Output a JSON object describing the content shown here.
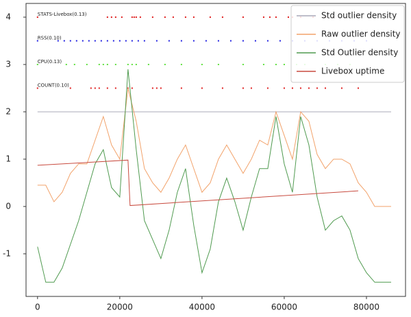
{
  "chart_data": {
    "type": "line",
    "xlim": [
      -2800,
      89500
    ],
    "ylim": [
      -1.9,
      4.29
    ],
    "xticks": [
      0,
      20000,
      40000,
      60000,
      80000
    ],
    "yticks": [
      -1,
      0,
      1,
      2,
      3,
      4
    ],
    "legend": "upper right",
    "series": [
      {
        "name": "Std outlier density",
        "color": "#a9a9b8",
        "x": [
          0,
          86000
        ],
        "values": [
          2,
          2
        ]
      },
      {
        "name": "Raw outlier density",
        "color": "#f2a26a",
        "x": [
          0,
          2000,
          4000,
          6000,
          8000,
          10000,
          12000,
          14000,
          16000,
          18000,
          20000,
          22000,
          24000,
          26000,
          28000,
          30000,
          32000,
          34000,
          36000,
          38000,
          40000,
          42000,
          44000,
          46000,
          48000,
          50000,
          52000,
          54000,
          56000,
          58000,
          60000,
          62000,
          64000,
          66000,
          68000,
          70000,
          72000,
          74000,
          76000,
          78000,
          80000,
          82000,
          84000,
          86000
        ],
        "values": [
          0.45,
          0.45,
          0.1,
          0.3,
          0.7,
          0.9,
          0.9,
          1.4,
          1.9,
          1.3,
          1.0,
          2.5,
          1.8,
          0.8,
          0.5,
          0.3,
          0.6,
          1.0,
          1.3,
          0.8,
          0.3,
          0.5,
          1.0,
          1.3,
          1.0,
          0.7,
          1.0,
          1.4,
          1.3,
          2.0,
          1.5,
          1.0,
          2.0,
          1.8,
          1.1,
          0.8,
          1.0,
          1.0,
          0.9,
          0.5,
          0.3,
          0.0,
          0.0,
          0.0
        ]
      },
      {
        "name": "Std Outlier density",
        "color": "#4f9a4f",
        "x": [
          0,
          2000,
          4000,
          6000,
          8000,
          10000,
          12000,
          14000,
          16000,
          18000,
          20000,
          22000,
          24000,
          26000,
          28000,
          30000,
          32000,
          34000,
          36000,
          38000,
          40000,
          42000,
          44000,
          46000,
          48000,
          50000,
          52000,
          54000,
          56000,
          58000,
          60000,
          62000,
          64000,
          66000,
          68000,
          70000,
          72000,
          74000,
          76000,
          78000,
          80000,
          82000,
          84000,
          86000
        ],
        "values": [
          -0.85,
          -1.6,
          -1.6,
          -1.3,
          -0.8,
          -0.3,
          0.3,
          0.9,
          1.2,
          0.4,
          0.2,
          2.9,
          1.2,
          -0.3,
          -0.7,
          -1.1,
          -0.5,
          0.3,
          0.8,
          -0.4,
          -1.4,
          -0.9,
          0.1,
          0.6,
          0.1,
          -0.5,
          0.2,
          0.8,
          0.8,
          1.9,
          0.9,
          0.3,
          1.9,
          1.3,
          0.2,
          -0.5,
          -0.3,
          -0.2,
          -0.5,
          -1.1,
          -1.4,
          -1.6,
          -1.6,
          -1.6
        ]
      },
      {
        "name": "Livebox uptime",
        "color": "#c84a3e",
        "x": [
          0,
          22000,
          22500,
          78000
        ],
        "values": [
          0.87,
          0.98,
          0.02,
          0.33
        ]
      }
    ],
    "event_rows": [
      {
        "label": "STATS-Livebox(0.13)",
        "y": 4,
        "color": "#e02020",
        "x": [
          0,
          17000,
          18000,
          19000,
          20500,
          23000,
          23500,
          24000,
          25000,
          28000,
          31000,
          33000,
          36000,
          38000,
          42000,
          45000,
          50000,
          55000,
          56500,
          58000,
          61000,
          62000,
          64000,
          67000,
          70000,
          72000
        ]
      },
      {
        "label": "RSS(0.10)",
        "y": 3.5,
        "color": "#2020e0",
        "x": [
          0,
          5000,
          6500,
          8000,
          9500,
          11000,
          12500,
          14000,
          15500,
          17000,
          18500,
          20000,
          21500,
          23000,
          24500,
          26000,
          29000,
          32000,
          35000,
          38000,
          41000,
          44000,
          47000,
          50000,
          53000,
          56000,
          59000,
          62000,
          65000,
          68000,
          71000,
          74000,
          77000,
          80000
        ]
      },
      {
        "label": "CPU(0.13)",
        "y": 3,
        "color": "#60e040",
        "x": [
          0,
          7000,
          9000,
          12000,
          15000,
          16000,
          17000,
          19000,
          22000,
          23000,
          24000,
          27000,
          31000,
          35000,
          40000,
          44000,
          50000,
          55000,
          58000,
          60000,
          63000,
          65000,
          70000,
          73000,
          76000
        ]
      },
      {
        "label": "COUNT(0.10)",
        "y": 2.5,
        "color": "#e02020",
        "x": [
          0,
          8000,
          13000,
          14000,
          15000,
          17000,
          19000,
          22000,
          23000,
          28000,
          29000,
          30000,
          35000,
          40000,
          45000,
          50000,
          52000,
          56000,
          60000,
          62000,
          64000,
          66000,
          68000,
          70000,
          74000,
          78000
        ]
      }
    ]
  }
}
